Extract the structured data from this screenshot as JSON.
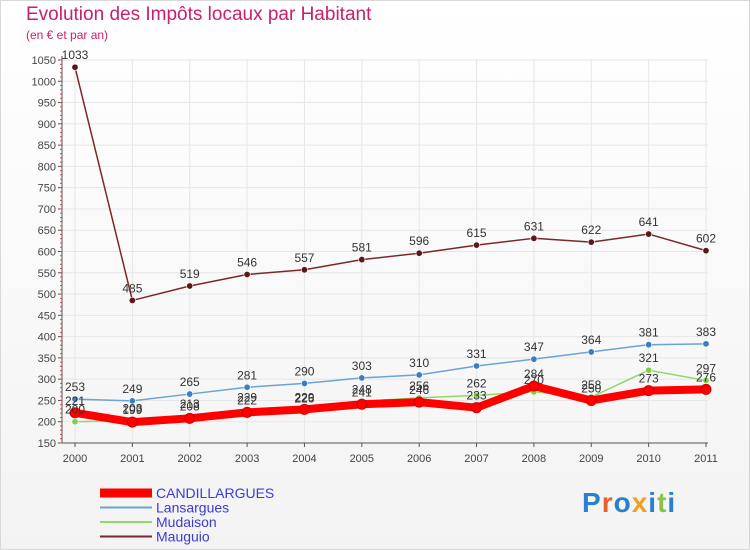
{
  "header": {
    "title": "Evolution des Impôts locaux par Habitant",
    "subtitle": "(en € et par an)"
  },
  "logo": {
    "text": "Proxiti"
  },
  "colors": {
    "title": "#c8206e",
    "legend_text": "#3b3bd6",
    "axis": "#555555",
    "grid": "#e6e6e6",
    "label": "#444444"
  },
  "chart_data": {
    "type": "line",
    "x": [
      "2000",
      "2001",
      "2002",
      "2003",
      "2004",
      "2005",
      "2006",
      "2007",
      "2008",
      "2009",
      "2010",
      "2011"
    ],
    "ylim": [
      150,
      1050
    ],
    "yticks": [
      150,
      200,
      250,
      300,
      350,
      400,
      450,
      500,
      550,
      600,
      650,
      700,
      750,
      800,
      850,
      900,
      950,
      1000,
      1050
    ],
    "grid": true,
    "legend_position": "bottom-left",
    "series": [
      {
        "name": "Mauguio",
        "color": "#7a2828",
        "marker": "#5a1818",
        "values": [
          1033,
          485,
          519,
          546,
          557,
          581,
          596,
          615,
          631,
          622,
          641,
          602
        ],
        "labeled": true
      },
      {
        "name": "Lansargues",
        "color": "#6aa3d6",
        "marker": "#3a7fc4",
        "values": [
          253,
          249,
          265,
          281,
          290,
          303,
          310,
          331,
          347,
          364,
          381,
          383
        ],
        "labeled": true
      },
      {
        "name": "Mudaison",
        "color": "#8fd86a",
        "marker": "#7bd04a",
        "values": [
          200,
          203,
          213,
          229,
          226,
          248,
          256,
          262,
          270,
          258,
          321,
          297
        ],
        "labeled": true
      },
      {
        "name": "CANDILLARGUES",
        "color": "#ff0000",
        "marker": "#ff0000",
        "values": [
          221,
          199,
          208,
          222,
          229,
          241,
          246,
          233,
          284,
          250,
          273,
          276
        ],
        "labeled": true
      }
    ]
  }
}
